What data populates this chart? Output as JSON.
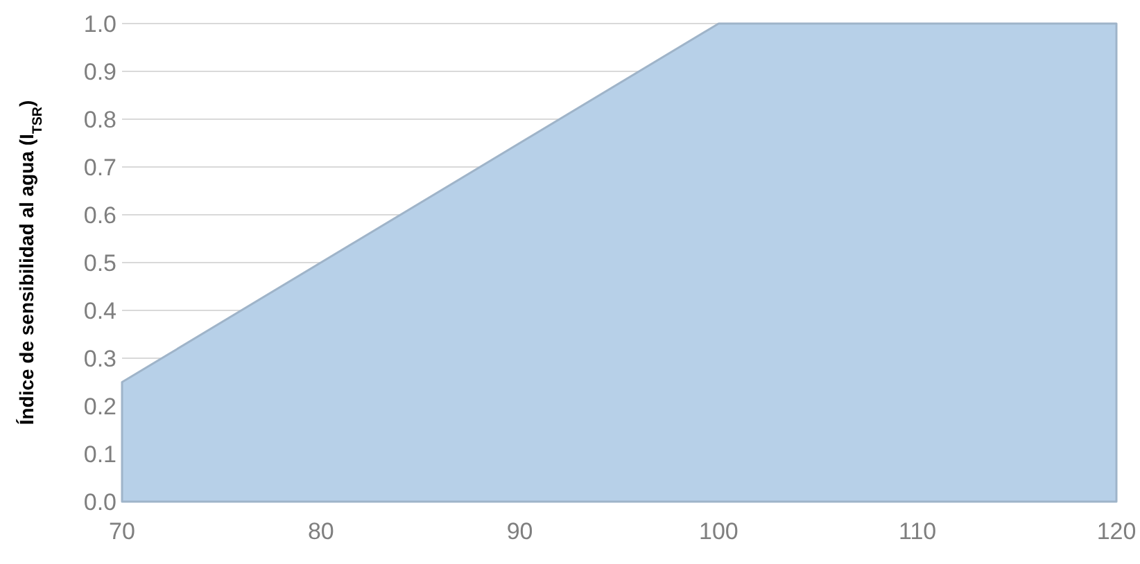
{
  "chart_data": {
    "type": "area",
    "ylabel": "Índice de sensibilidad al agua (I$_{TSR}$)",
    "x": [
      70,
      100,
      120
    ],
    "series": [
      {
        "color": "#b7d0e8",
        "values": [
          0.25,
          1.0,
          1.0
        ]
      }
    ],
    "xlim": [
      70,
      120
    ],
    "xticks": [
      70,
      80,
      90,
      100,
      110,
      120
    ],
    "ylim": [
      0,
      1
    ],
    "yticks": [
      {
        "value": 0,
        "label": "0.0"
      },
      {
        "value": 0.1,
        "label": "0.1"
      },
      {
        "value": 0.2,
        "label": "0.2"
      },
      {
        "value": 0.3,
        "label": "0.3"
      },
      {
        "value": 0.4,
        "label": "0.4"
      },
      {
        "value": 0.5,
        "label": "0.5"
      },
      {
        "value": 0.6,
        "label": "0.6"
      },
      {
        "value": 0.7,
        "label": "0.7"
      },
      {
        "value": 0.8,
        "label": "0.8"
      },
      {
        "value": 0.9,
        "label": "0.9"
      },
      {
        "value": 1,
        "label": "1.0"
      }
    ],
    "grid": "y"
  }
}
